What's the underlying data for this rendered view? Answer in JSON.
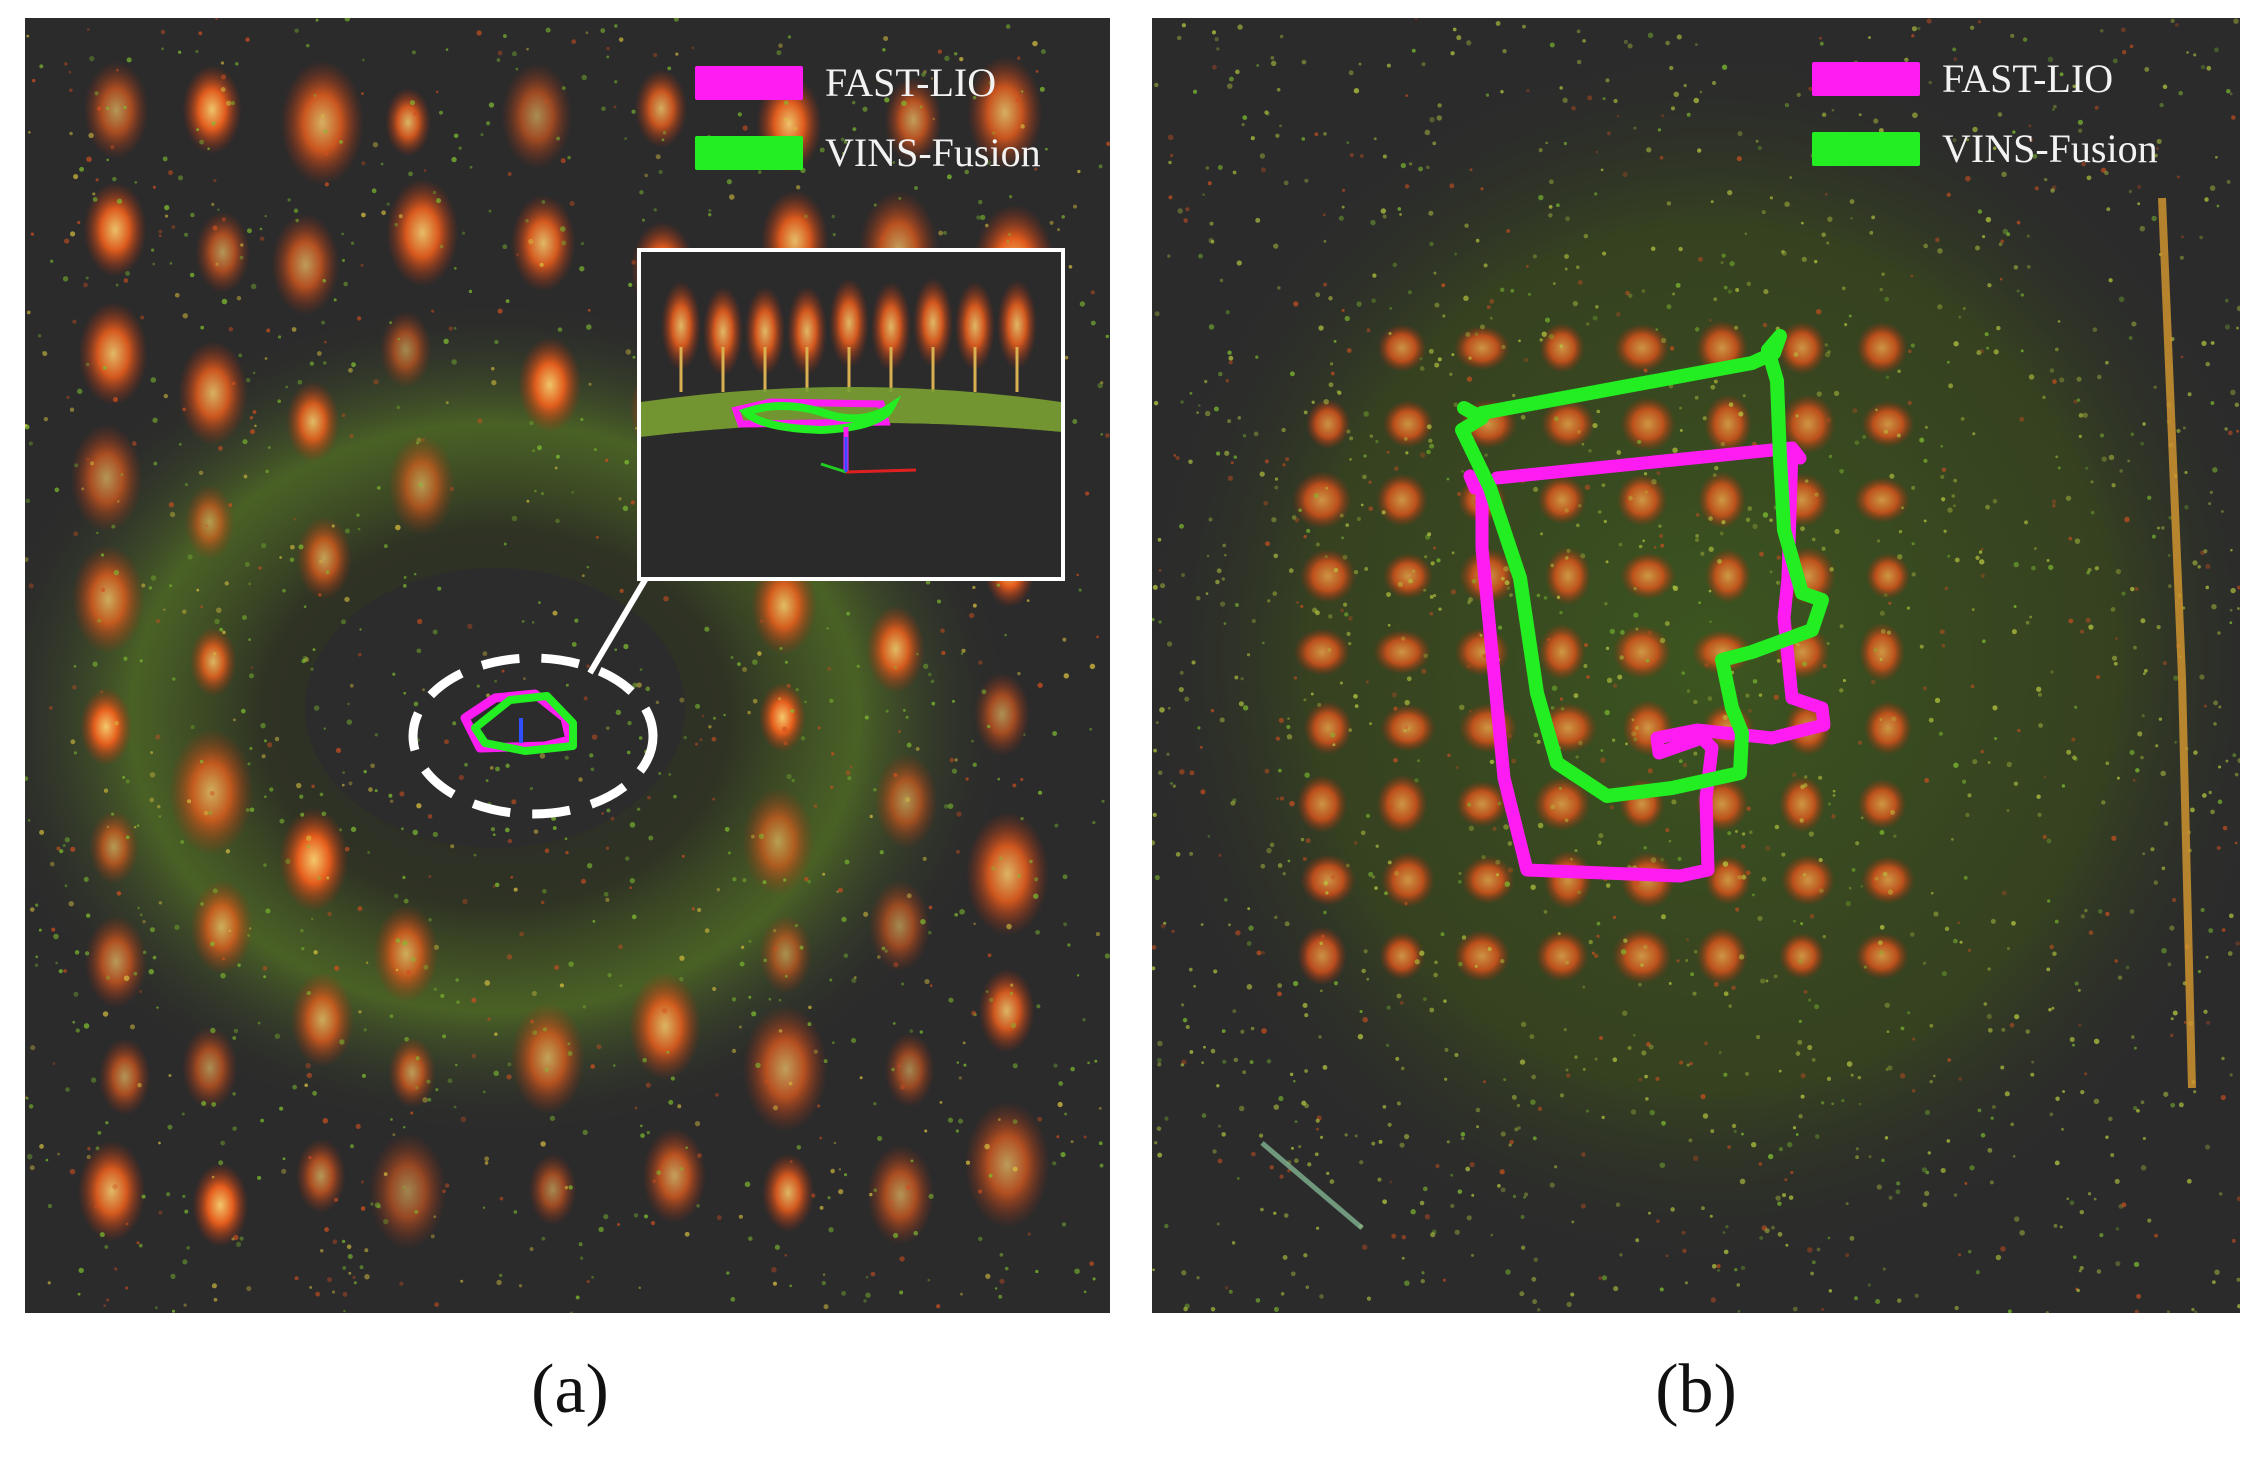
{
  "colors": {
    "fast_lio": "#ff1cf2",
    "vins_fusion": "#22ee22",
    "background": "#2b2b2b",
    "tree_canopy": "#e8541a",
    "ground_points": "#6a9a2a"
  },
  "panels": [
    {
      "caption": "(a)",
      "legend": [
        {
          "label": "FAST-LIO",
          "color": "#ff1cf2"
        },
        {
          "label": "VINS-Fusion",
          "color": "#22ee22"
        }
      ]
    },
    {
      "caption": "(b)",
      "legend": [
        {
          "label": "FAST-LIO",
          "color": "#ff1cf2"
        },
        {
          "label": "VINS-Fusion",
          "color": "#22ee22"
        }
      ]
    }
  ]
}
